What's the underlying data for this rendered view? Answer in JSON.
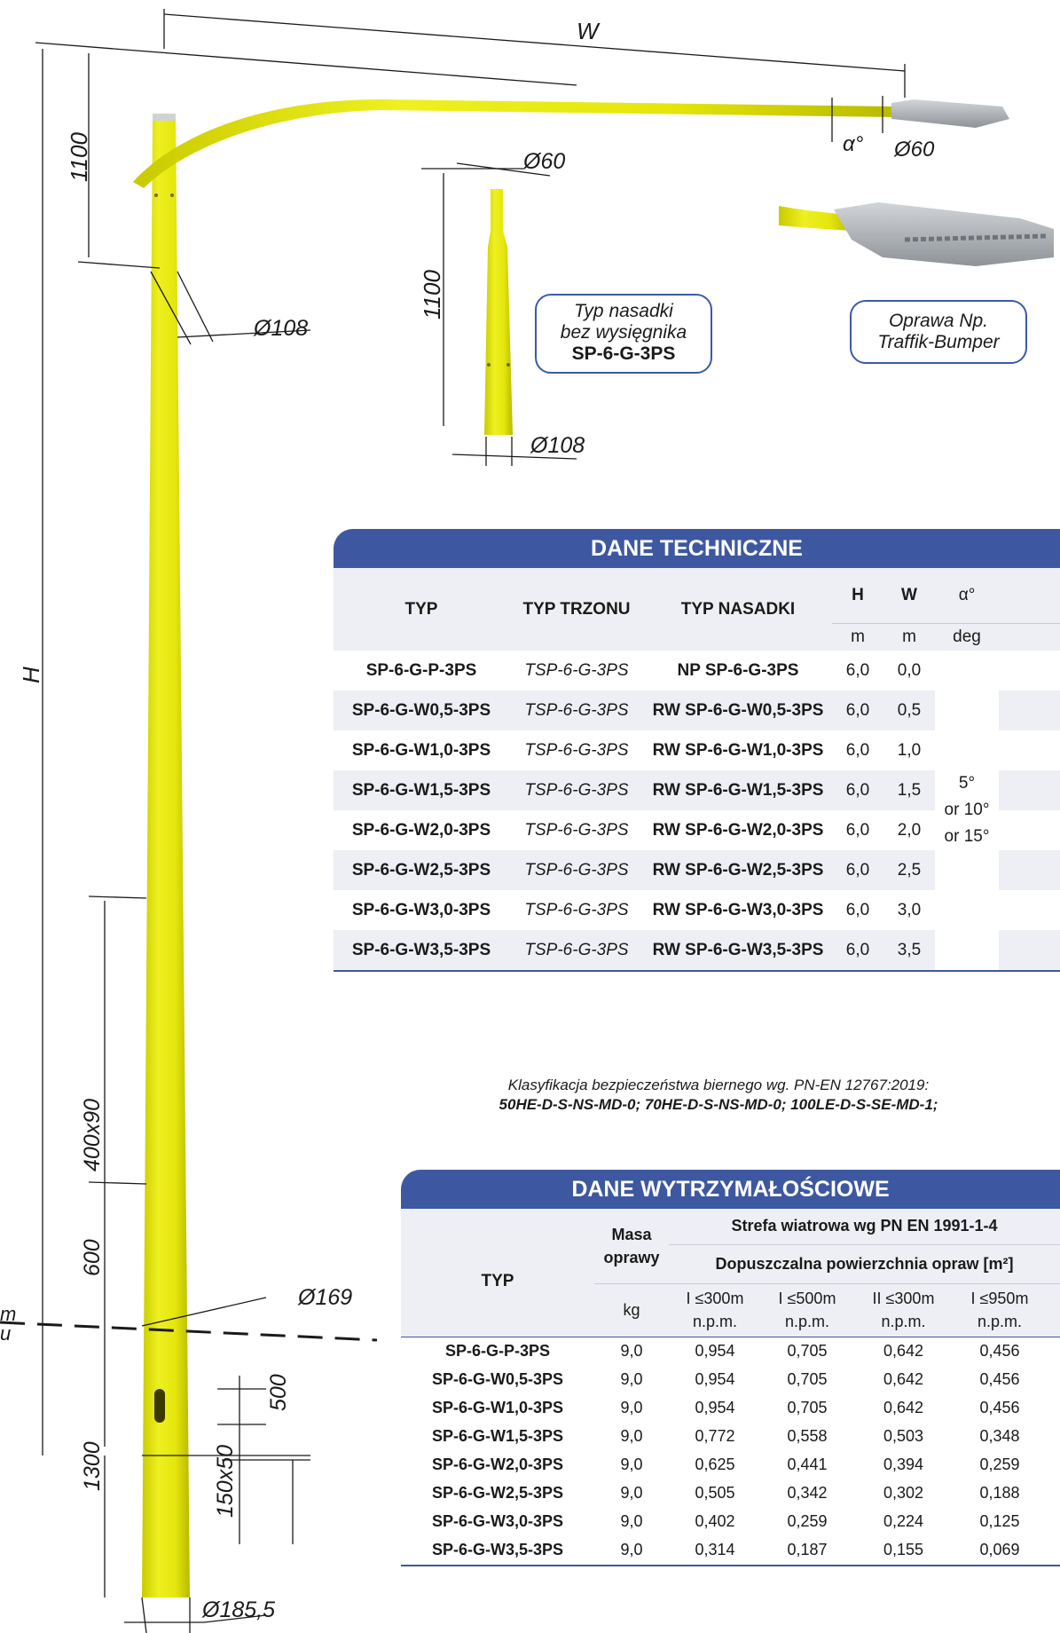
{
  "dimensions": {
    "w": "W",
    "h": "H",
    "d60_top": "Ø60",
    "alpha": "α°",
    "arm_1100": "1100",
    "d108_main": "Ø108",
    "d60_adapter": "Ø60",
    "adapter_1100": "1100",
    "d108_adapter": "Ø108",
    "d400x90": "400x90",
    "d600": "600",
    "d169": "Ø169",
    "d500": "500",
    "d1300": "1300",
    "d150x50": "150x50",
    "d185": "Ø185,5",
    "ground_left_1": "m",
    "ground_left_2": "u"
  },
  "callouts": {
    "adapter": {
      "line1": "Typ nasadki",
      "line2": "bez wysięgnika",
      "line3": "SP-6-G-3PS"
    },
    "luminaire": {
      "line1": "Oprawa Np.",
      "line2": "Traffik-Bumper"
    }
  },
  "tech": {
    "title": "DANE TECHNICZNE",
    "headers": {
      "typ": "TYP",
      "trzon": "TYP TRZONU",
      "nasadka": "TYP NASADKI",
      "h": "H",
      "w": "W",
      "alpha": "α°"
    },
    "units": {
      "h": "m",
      "w": "m",
      "alpha": "deg"
    },
    "alpha_values": [
      "5°",
      "or 10°",
      "or 15°"
    ],
    "rows": [
      {
        "typ": "SP-6-G-P-3PS",
        "trzon": "TSP-6-G-3PS",
        "nasadka": "NP SP-6-G-3PS",
        "h": "6,0",
        "w": "0,0"
      },
      {
        "typ": "SP-6-G-W0,5-3PS",
        "trzon": "TSP-6-G-3PS",
        "nasadka": "RW SP-6-G-W0,5-3PS",
        "h": "6,0",
        "w": "0,5"
      },
      {
        "typ": "SP-6-G-W1,0-3PS",
        "trzon": "TSP-6-G-3PS",
        "nasadka": "RW SP-6-G-W1,0-3PS",
        "h": "6,0",
        "w": "1,0"
      },
      {
        "typ": "SP-6-G-W1,5-3PS",
        "trzon": "TSP-6-G-3PS",
        "nasadka": "RW SP-6-G-W1,5-3PS",
        "h": "6,0",
        "w": "1,5"
      },
      {
        "typ": "SP-6-G-W2,0-3PS",
        "trzon": "TSP-6-G-3PS",
        "nasadka": "RW SP-6-G-W2,0-3PS",
        "h": "6,0",
        "w": "2,0"
      },
      {
        "typ": "SP-6-G-W2,5-3PS",
        "trzon": "TSP-6-G-3PS",
        "nasadka": "RW SP-6-G-W2,5-3PS",
        "h": "6,0",
        "w": "2,5"
      },
      {
        "typ": "SP-6-G-W3,0-3PS",
        "trzon": "TSP-6-G-3PS",
        "nasadka": "RW SP-6-G-W3,0-3PS",
        "h": "6,0",
        "w": "3,0"
      },
      {
        "typ": "SP-6-G-W3,5-3PS",
        "trzon": "TSP-6-G-3PS",
        "nasadka": "RW SP-6-G-W3,5-3PS",
        "h": "6,0",
        "w": "3,5"
      }
    ]
  },
  "note": {
    "line1": "Klasyfikacja bezpieczeństwa biernego wg. PN-EN 12767:2019:",
    "line2": "50HE-D-S-NS-MD-0; 70HE-D-S-NS-MD-0; 100LE-D-S-SE-MD-1;"
  },
  "strength": {
    "title": "DANE WYTRZYMAŁOŚCIOWE",
    "headers": {
      "typ": "TYP",
      "masa_1": "Masa",
      "masa_2": "oprawy",
      "strefa": "Strefa wiatrowa wg PN EN 1991-1-4",
      "dopuszczalna": "Dopuszczalna powierzchnia opraw [m²]",
      "kg": "kg",
      "z1_a": "I ≤300m",
      "z1_b": "n.p.m.",
      "z2_a": "I ≤500m",
      "z2_b": "n.p.m.",
      "z3_a": "II ≤300m",
      "z3_b": "n.p.m.",
      "z4_a": "I ≤950m",
      "z4_b": "n.p.m."
    },
    "rows": [
      {
        "typ": "SP-6-G-P-3PS",
        "masa": "9,0",
        "z1": "0,954",
        "z2": "0,705",
        "z3": "0,642",
        "z4": "0,456"
      },
      {
        "typ": "SP-6-G-W0,5-3PS",
        "masa": "9,0",
        "z1": "0,954",
        "z2": "0,705",
        "z3": "0,642",
        "z4": "0,456"
      },
      {
        "typ": "SP-6-G-W1,0-3PS",
        "masa": "9,0",
        "z1": "0,954",
        "z2": "0,705",
        "z3": "0,642",
        "z4": "0,456"
      },
      {
        "typ": "SP-6-G-W1,5-3PS",
        "masa": "9,0",
        "z1": "0,772",
        "z2": "0,558",
        "z3": "0,503",
        "z4": "0,348"
      },
      {
        "typ": "SP-6-G-W2,0-3PS",
        "masa": "9,0",
        "z1": "0,625",
        "z2": "0,441",
        "z3": "0,394",
        "z4": "0,259"
      },
      {
        "typ": "SP-6-G-W2,5-3PS",
        "masa": "9,0",
        "z1": "0,505",
        "z2": "0,342",
        "z3": "0,302",
        "z4": "0,188"
      },
      {
        "typ": "SP-6-G-W3,0-3PS",
        "masa": "9,0",
        "z1": "0,402",
        "z2": "0,259",
        "z3": "0,224",
        "z4": "0,125"
      },
      {
        "typ": "SP-6-G-W3,5-3PS",
        "masa": "9,0",
        "z1": "0,314",
        "z2": "0,187",
        "z3": "0,155",
        "z4": "0,069"
      }
    ]
  },
  "colors": {
    "pole": "#e6e80f",
    "pole_shade": "#c8ca00",
    "header_blue": "#3d58a0",
    "row_shade": "#eeeff4",
    "luminaire": "#a9aeb3"
  }
}
